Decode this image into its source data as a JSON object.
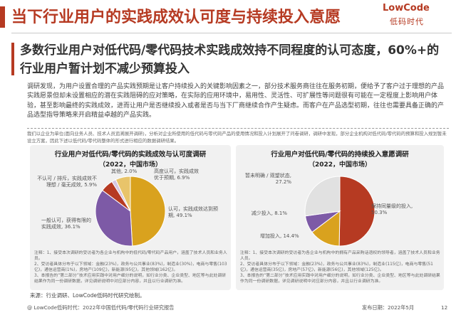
{
  "title": "当下行业用户的实践成效认可度与持续投入意愿",
  "logo": {
    "top": "LowCode",
    "bottom": "低码时代"
  },
  "subhead": "多数行业用户对低代码/零代码技术实践成效持不同程度的认可态度，60%+的行业用户暂计划不减少预算投入",
  "body": "调研发现，为用户设置合理的产品实践预期是让客户持续投入的关键影响因素之一，部分技术服务商往往在服务初期，便给予了客户过于理想的产品实践愿景但却未设置相应的潜在实践阻碍的应对策略，在实际的应用环境中，易用性、灵活性、可扩展性等问题很有可能在一定程度上影响用户体验，甚至影响最终的实践成效，进而让用户是否继续投入或者是否与当下厂商继续合作产生疑虑。而客户在产品选型初期，往往也需要具备正确的产品选型指导策略来开启精益卓越的产品实践。",
  "method_note": "我们以企业为单位(面向业务人员、技术人员追溯展开调研)，分析对企业所使用的低代码与零代码产品的使用情况和投入计划展开了问卷调研，调研中发现，部分企业机构对低代码/零代码的预算和投入规划暂未设立方案，因此下述以低代码/零代码整体的形式进行相应的数据调研结果。",
  "source": "来源：行业调研、LowCode低码时代研究绘制。",
  "footer": {
    "left": "@ LowCode低码时代：2022年中国低代码/零代码行业研究报告",
    "date": "发布日期：2022年5月",
    "page": "12"
  },
  "chart_data": [
    {
      "type": "pie",
      "title": "行业用户对低代码/零代码的实践成效与认可度调研",
      "subtitle": "（2022，中国市场）",
      "slices": [
        {
          "label": "认可，实践成效达到预期",
          "value": 49.1,
          "value_text": "49.1%",
          "color": "#d9a21e"
        },
        {
          "label": "一般认可，获得有限的实践成效",
          "value": 36.1,
          "value_text": "36.1%",
          "color": "#7d5aa6"
        },
        {
          "label": "不认可 / 排斥，实践成效不理想 / 毫无成效",
          "value": 5.9,
          "value_text": "5.9%",
          "color": "#b63a22"
        },
        {
          "label": "其他",
          "value": 2.0,
          "value_text": "2.0%",
          "color": "#d6c7e3"
        },
        {
          "label": "高度认可，实践成效优于预期",
          "value": 6.9,
          "value_text": "6.9%",
          "color": "#e8c46a"
        }
      ],
      "notes": [
        "注释：1、接受本次调研的受访者为各企业与机构中的低代码/零代码产品用户，涵盖了技术人员和业务人员。",
        "2、受访者具体分布于以下领域：金融(23%)，政务与公共事业(83%)，制造业(30%)，电商与零售(103亿)，通信运营商(1%)，房地产(109亿)，新能源(95亿)，其他领域(162亿)。",
        "3、本报告的“第二部分”技术应用实践中对用户细分的说明，如行业分类、企业类型、地区等与此处调研结果作为同一份调研数据，详见调研说明中对应部分内容，并且以行业调研为准。"
      ]
    },
    {
      "type": "pie",
      "title": "行业用户对低代码/零代码的持续投入意愿调研",
      "subtitle": "（2022，中国市场）",
      "slices": [
        {
          "label": "保持同量级的投入",
          "value": 50.3,
          "value_text": "50.3%",
          "color": "#b63a22"
        },
        {
          "label": "增加投入",
          "value": 14.4,
          "value_text": "14.4%",
          "color": "#d9a21e"
        },
        {
          "label": "减少投入",
          "value": 8.1,
          "value_text": "8.1%",
          "color": "#7d5aa6"
        },
        {
          "label": "暂未明确 / 观望状态",
          "value": 27.2,
          "value_text": "27.2%",
          "color": "#e1e1e1"
        }
      ],
      "notes": [
        "注释：1、接受本次调研的受访者为各企业与机构中的拥有产品采购话语权的领导者，涵盖了技术人员和业务人员。",
        "2、受访者具体分布于以下领域：金融(23%)，政务与公共事业(83%)，制造业(115亿)，电商与零售(51亿)，通信运营商(35亿)，房地产(57亿)，新能源(56亿)，其他领域(125亿)。",
        "3、本报告的“第二部分”技术应用实践中对用户细分的说明，如行业分类、企业类型、地区等与此处调研结果作为同一份调研数据，详见调研说明中对应部分内容，并且以行业调研为准。"
      ]
    }
  ]
}
